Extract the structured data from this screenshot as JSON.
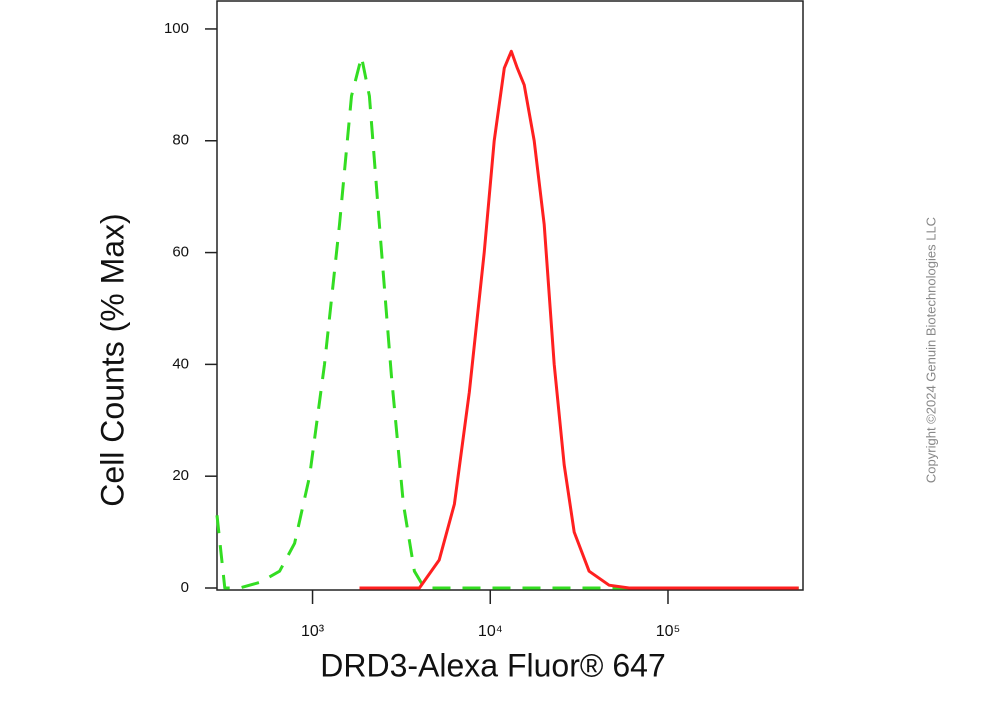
{
  "chart_data": {
    "type": "line",
    "ylabel": "Cell Counts (% Max)",
    "xlabel": "DRD3-Alexa Fluor® 647",
    "note": "Copyright ©2024 Genuin Biotechnologies LLC",
    "xscale": "log",
    "xlim": [
      290,
      575000
    ],
    "ylim": [
      0,
      105
    ],
    "xticks": [
      {
        "value": 1000,
        "label": "10³"
      },
      {
        "value": 10000,
        "label": "10⁴"
      },
      {
        "value": 100000,
        "label": "10⁵"
      }
    ],
    "yticks": [
      0,
      20,
      40,
      60,
      80,
      100
    ],
    "series": [
      {
        "color": "#33dd22",
        "dash": true,
        "x": [
          290,
          321,
          389,
          504,
          653,
          793,
          962,
          1167,
          1418,
          1656,
          1885,
          2090,
          2378,
          2778,
          3245,
          3740,
          4258,
          40900,
          544000
        ],
        "values": [
          13,
          0,
          0,
          1,
          3,
          8,
          20,
          40,
          65,
          88,
          95,
          88,
          65,
          38,
          15,
          3,
          0,
          0,
          0
        ]
      },
      {
        "color": "#ff2020",
        "dash": false,
        "x": [
          1838,
          3990,
          5160,
          6280,
          7620,
          9250,
          10520,
          11990,
          13130,
          14190,
          15530,
          17670,
          20100,
          22900,
          26060,
          29650,
          35980,
          46650,
          60400,
          544000
        ],
        "values": [
          0,
          0,
          5,
          15,
          35,
          60,
          80,
          93,
          96,
          93,
          90,
          80,
          65,
          40,
          22,
          10,
          3,
          0.5,
          0,
          0
        ]
      }
    ]
  }
}
